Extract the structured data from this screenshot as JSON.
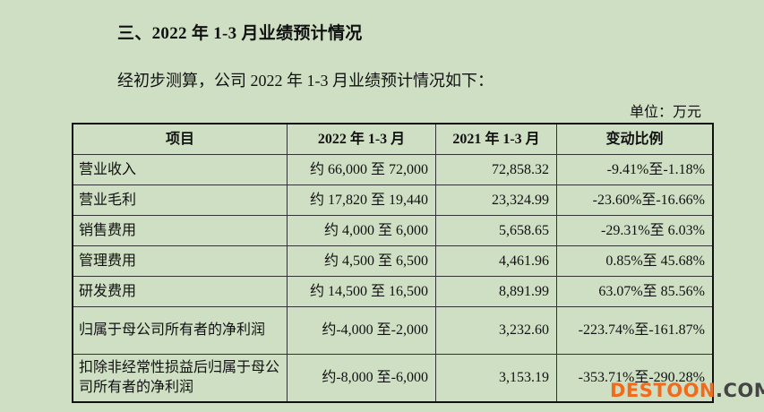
{
  "heading": "三、2022 年 1-3 月业绩预计情况",
  "intro": "经初步测算，公司 2022 年 1-3 月业绩预计情况如下：",
  "unit": "单位：万元",
  "table": {
    "headers": [
      "项目",
      "2022 年 1-3 月",
      "2021 年 1-3 月",
      "变动比例"
    ],
    "rows": [
      [
        "营业收入",
        "约 66,000 至 72,000",
        "72,858.32",
        "-9.41%至-1.18%"
      ],
      [
        "营业毛利",
        "约 17,820 至 19,440",
        "23,324.99",
        "-23.60%至-16.66%"
      ],
      [
        "销售费用",
        "约 4,000 至 6,000",
        "5,658.65",
        "-29.31%至 6.03%"
      ],
      [
        "管理费用",
        "约 4,500 至 6,500",
        "4,461.96",
        "0.85%至 45.68%"
      ],
      [
        "研发费用",
        "约 14,500 至 16,500",
        "8,891.99",
        "63.07%至 85.56%"
      ],
      [
        "归属于母公司所有者的净利润",
        "约-4,000 至-2,000",
        "3,232.60",
        "-223.74%至-161.87%"
      ],
      [
        "扣除非经常性损益后归属于母公司所有者的净利润",
        "约-8,000 至-6,000",
        "3,153.19",
        "-353.71%至-290.28%"
      ]
    ]
  },
  "watermark": {
    "main": "DESTOON",
    "suffix": ".COM"
  }
}
